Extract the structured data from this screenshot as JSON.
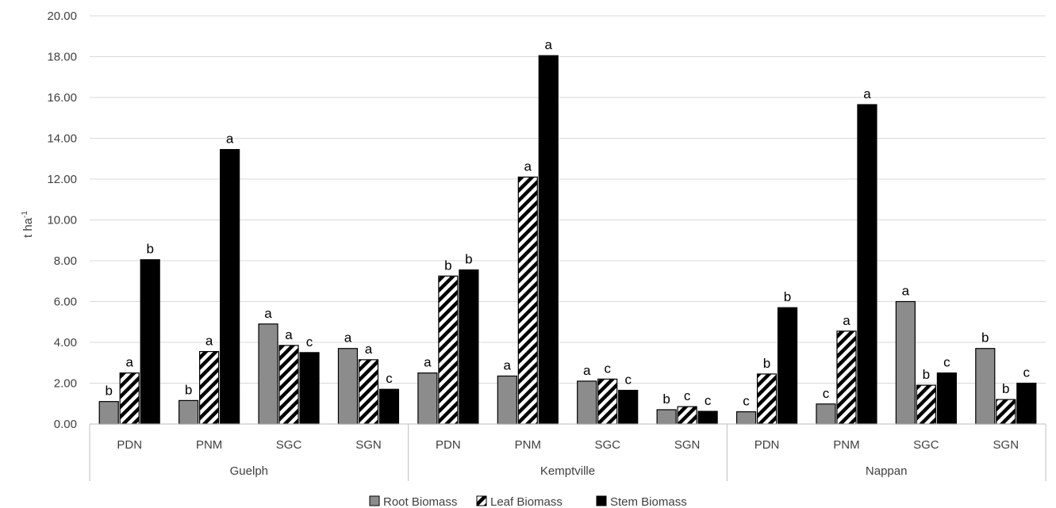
{
  "chart_data": {
    "type": "bar",
    "ylabel": "t ha",
    "ylabel_sup": "-1",
    "ylim": [
      0,
      20
    ],
    "yticks": [
      "0.00",
      "2.00",
      "4.00",
      "6.00",
      "8.00",
      "10.00",
      "12.00",
      "14.00",
      "16.00",
      "18.00",
      "20.00"
    ],
    "grid": true,
    "legend_position": "bottom",
    "groups": [
      "Guelph",
      "Kemptville",
      "Nappan"
    ],
    "categories": [
      "PDN",
      "PNM",
      "SGC",
      "SGN"
    ],
    "series": [
      {
        "name": "Root Biomass",
        "color": "#8c8c8c",
        "pattern": "solid-gray",
        "values": [
          [
            1.1,
            1.15,
            4.9,
            3.7
          ],
          [
            2.5,
            2.35,
            2.1,
            0.7
          ],
          [
            0.6,
            0.98,
            6.0,
            3.7
          ]
        ],
        "letters": [
          [
            "b",
            "b",
            "a",
            "a"
          ],
          [
            "a",
            "a",
            "a",
            "b"
          ],
          [
            "c",
            "c",
            "a",
            "b"
          ]
        ]
      },
      {
        "name": "Leaf Biomass",
        "color": "#000000",
        "pattern": "diagonal-hatch",
        "values": [
          [
            2.5,
            3.55,
            3.85,
            3.15
          ],
          [
            7.25,
            12.1,
            2.2,
            0.85
          ],
          [
            2.45,
            4.55,
            1.9,
            1.2
          ]
        ],
        "letters": [
          [
            "a",
            "a",
            "a",
            "a"
          ],
          [
            "b",
            "a",
            "c",
            "c"
          ],
          [
            "b",
            "a",
            "b",
            "b"
          ]
        ]
      },
      {
        "name": "Stem Biomass",
        "color": "#000000",
        "pattern": "solid-black",
        "values": [
          [
            8.05,
            13.45,
            3.5,
            1.7
          ],
          [
            7.55,
            18.05,
            1.65,
            0.62
          ],
          [
            5.7,
            15.65,
            2.5,
            2.0
          ]
        ],
        "letters": [
          [
            "b",
            "a",
            "c",
            "c"
          ],
          [
            "b",
            "a",
            "c",
            "c"
          ],
          [
            "b",
            "a",
            "c",
            "c"
          ]
        ]
      }
    ]
  }
}
